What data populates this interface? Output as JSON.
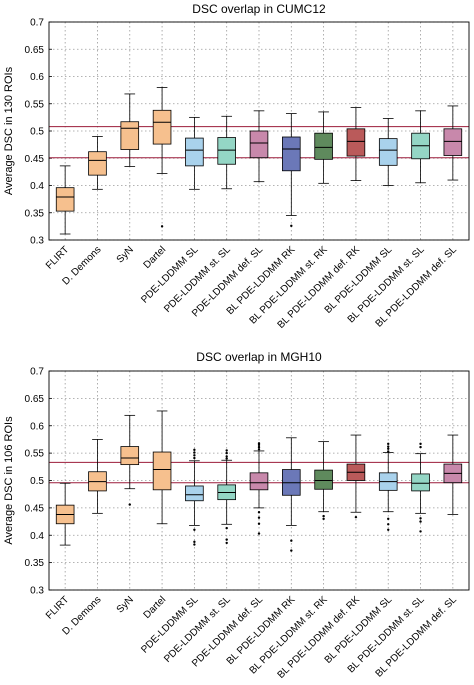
{
  "categories": [
    "FLIRT",
    "D. Demons",
    "SyN",
    "Dartel",
    "PDE-LDDMM SL",
    "PDE-LDDMM st. SL",
    "PDE-LDDMM def. SL",
    "BL PDE-LDDMM RK",
    "BL PDE-LDDMM st. RK",
    "BL PDE-LDDMM def. RK",
    "BL PDE-LDDMM SL",
    "BL PDE-LDDMM st. SL",
    "BL PDE-LDDMM def. SL"
  ],
  "colors": [
    "#f6c08e",
    "#f6c08e",
    "#f6c08e",
    "#f6c08e",
    "#a9d2ec",
    "#94d6c5",
    "#c888ab",
    "#6b78b8",
    "#5f8a5d",
    "#ba5a5a",
    "#a9d2ec",
    "#94d6c5",
    "#c888ab"
  ],
  "refline_color": "#9c1c3a",
  "chart_data": [
    {
      "type": "box",
      "title": "DSC overlap in CUMC12",
      "ylabel": "Average DSC in 130 ROIs",
      "ylim": [
        0.3,
        0.7
      ],
      "yticks": [
        "0.3",
        "0.35",
        "0.4",
        "0.45",
        "0.5",
        "0.55",
        "0.6",
        "0.65",
        "0.7"
      ],
      "grid": true,
      "reference_lines": [
        0.508,
        0.451
      ],
      "boxes": [
        {
          "min": 0.311,
          "q1": 0.353,
          "median": 0.379,
          "q3": 0.396,
          "max": 0.436,
          "outliers": []
        },
        {
          "min": 0.393,
          "q1": 0.419,
          "median": 0.446,
          "q3": 0.462,
          "max": 0.49,
          "outliers": []
        },
        {
          "min": 0.435,
          "q1": 0.466,
          "median": 0.505,
          "q3": 0.517,
          "max": 0.568,
          "outliers": []
        },
        {
          "min": 0.422,
          "q1": 0.476,
          "median": 0.516,
          "q3": 0.538,
          "max": 0.58,
          "outliers": [
            0.325
          ]
        },
        {
          "min": 0.393,
          "q1": 0.436,
          "median": 0.465,
          "q3": 0.487,
          "max": 0.525,
          "outliers": []
        },
        {
          "min": 0.394,
          "q1": 0.439,
          "median": 0.465,
          "q3": 0.488,
          "max": 0.527,
          "outliers": []
        },
        {
          "min": 0.407,
          "q1": 0.451,
          "median": 0.478,
          "q3": 0.5,
          "max": 0.537,
          "outliers": []
        },
        {
          "min": 0.345,
          "q1": 0.427,
          "median": 0.467,
          "q3": 0.489,
          "max": 0.532,
          "outliers": [
            0.326
          ]
        },
        {
          "min": 0.404,
          "q1": 0.448,
          "median": 0.47,
          "q3": 0.496,
          "max": 0.535,
          "outliers": []
        },
        {
          "min": 0.409,
          "q1": 0.454,
          "median": 0.481,
          "q3": 0.504,
          "max": 0.543,
          "outliers": []
        },
        {
          "min": 0.4,
          "q1": 0.437,
          "median": 0.465,
          "q3": 0.486,
          "max": 0.523,
          "outliers": []
        },
        {
          "min": 0.405,
          "q1": 0.449,
          "median": 0.473,
          "q3": 0.496,
          "max": 0.537,
          "outliers": []
        },
        {
          "min": 0.41,
          "q1": 0.455,
          "median": 0.481,
          "q3": 0.504,
          "max": 0.546,
          "outliers": []
        }
      ]
    },
    {
      "type": "box",
      "title": "DSC overlap in MGH10",
      "ylabel": "Average DSC in 106 ROIs",
      "ylim": [
        0.3,
        0.7
      ],
      "yticks": [
        "0.3",
        "0.35",
        "0.4",
        "0.45",
        "0.5",
        "0.55",
        "0.6",
        "0.65",
        "0.7"
      ],
      "grid": true,
      "reference_lines": [
        0.533,
        0.496
      ],
      "boxes": [
        {
          "min": 0.382,
          "q1": 0.421,
          "median": 0.438,
          "q3": 0.455,
          "max": 0.495,
          "outliers": []
        },
        {
          "min": 0.44,
          "q1": 0.481,
          "median": 0.498,
          "q3": 0.516,
          "max": 0.575,
          "outliers": []
        },
        {
          "min": 0.485,
          "q1": 0.529,
          "median": 0.541,
          "q3": 0.562,
          "max": 0.619,
          "outliers": [
            0.456
          ]
        },
        {
          "min": 0.421,
          "q1": 0.483,
          "median": 0.52,
          "q3": 0.552,
          "max": 0.627,
          "outliers": []
        },
        {
          "min": 0.418,
          "q1": 0.463,
          "median": 0.474,
          "q3": 0.49,
          "max": 0.536,
          "outliers": [
            0.556,
            0.551,
            0.546,
            0.541,
            0.41,
            0.388,
            0.383
          ]
        },
        {
          "min": 0.42,
          "q1": 0.465,
          "median": 0.478,
          "q3": 0.492,
          "max": 0.537,
          "outliers": [
            0.555,
            0.55,
            0.544,
            0.54,
            0.413,
            0.392,
            0.386
          ]
        },
        {
          "min": 0.45,
          "q1": 0.483,
          "median": 0.496,
          "q3": 0.514,
          "max": 0.554,
          "outliers": [
            0.568,
            0.565,
            0.561,
            0.557,
            0.442,
            0.432,
            0.421,
            0.403
          ]
        },
        {
          "min": 0.418,
          "q1": 0.473,
          "median": 0.496,
          "q3": 0.52,
          "max": 0.578,
          "outliers": [
            0.39,
            0.372
          ]
        },
        {
          "min": 0.443,
          "q1": 0.484,
          "median": 0.5,
          "q3": 0.519,
          "max": 0.571,
          "outliers": [
            0.435,
            0.43
          ]
        },
        {
          "min": 0.442,
          "q1": 0.5,
          "median": 0.515,
          "q3": 0.53,
          "max": 0.583,
          "outliers": [
            0.433
          ]
        },
        {
          "min": 0.443,
          "q1": 0.482,
          "median": 0.498,
          "q3": 0.514,
          "max": 0.551,
          "outliers": [
            0.567,
            0.562,
            0.558,
            0.553,
            0.43,
            0.42,
            0.41
          ]
        },
        {
          "min": 0.44,
          "q1": 0.481,
          "median": 0.495,
          "q3": 0.512,
          "max": 0.549,
          "outliers": [
            0.567,
            0.561,
            0.431,
            0.425,
            0.407
          ]
        },
        {
          "min": 0.438,
          "q1": 0.496,
          "median": 0.513,
          "q3": 0.53,
          "max": 0.583,
          "outliers": []
        }
      ]
    }
  ]
}
